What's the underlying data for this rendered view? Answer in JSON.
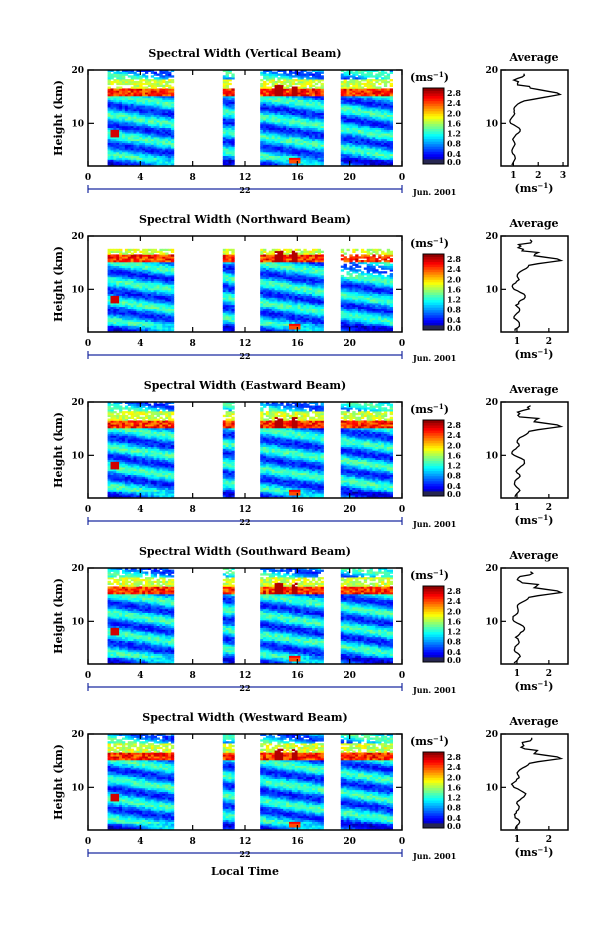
{
  "chart_data": [
    {
      "type": "heatmap",
      "title": "Spectral Width (Vertical Beam)",
      "ylabel": "Height (km)",
      "yticks": [
        "10",
        "20"
      ],
      "ylim": [
        2,
        20
      ],
      "xticks": [
        "0",
        "4",
        "8",
        "12",
        "16",
        "20",
        "0"
      ],
      "date_label": "22",
      "month_label": "Jun. 2001",
      "colorbar": {
        "unit": "(ms⁻¹)",
        "ticks": [
          "2.8",
          "2.4",
          "2.0",
          "1.6",
          "1.2",
          "0.8",
          "0.4",
          "0.0"
        ],
        "range": [
          0,
          3.0
        ]
      },
      "average": {
        "title": "Average",
        "unit": "(ms⁻¹)",
        "xticks": [
          "1",
          "2",
          "3"
        ],
        "xlim": [
          0.5,
          3.2
        ],
        "yticks": [
          "10",
          "20"
        ],
        "peak": {
          "height_km": 15.5,
          "value": 3.0
        }
      }
    },
    {
      "type": "heatmap",
      "title": "Spectral Width (Northward Beam)",
      "ylabel": "Height (km)",
      "yticks": [
        "10",
        "20"
      ],
      "ylim": [
        2,
        20
      ],
      "xticks": [
        "0",
        "4",
        "8",
        "12",
        "16",
        "20",
        "0"
      ],
      "date_label": "22",
      "month_label": "Jun. 2001",
      "colorbar": {
        "unit": "(ms⁻¹)",
        "ticks": [
          "2.8",
          "2.4",
          "2.0",
          "1.6",
          "1.2",
          "0.8",
          "0.4",
          "0.0"
        ],
        "range": [
          0,
          3.0
        ]
      },
      "average": {
        "title": "Average",
        "unit": "(ms⁻¹)",
        "xticks": [
          "1",
          "2"
        ],
        "xlim": [
          0.5,
          2.6
        ],
        "yticks": [
          "10",
          "20"
        ],
        "peak": {
          "height_km": 15.5,
          "value": 2.5
        }
      }
    },
    {
      "type": "heatmap",
      "title": "Spectral Width (Eastward Beam)",
      "ylabel": "Height (km)",
      "yticks": [
        "10",
        "20"
      ],
      "ylim": [
        2,
        20
      ],
      "xticks": [
        "0",
        "4",
        "8",
        "12",
        "16",
        "20",
        "0"
      ],
      "date_label": "22",
      "month_label": "Jun. 2001",
      "colorbar": {
        "unit": "(ms⁻¹)",
        "ticks": [
          "2.8",
          "2.4",
          "2.0",
          "1.6",
          "1.2",
          "0.8",
          "0.4",
          "0.0"
        ],
        "range": [
          0,
          3.0
        ]
      },
      "average": {
        "title": "Average",
        "unit": "(ms⁻¹)",
        "xticks": [
          "1",
          "2"
        ],
        "xlim": [
          0.5,
          2.6
        ],
        "yticks": [
          "10",
          "20"
        ],
        "peak": {
          "height_km": 15.5,
          "value": 2.5
        }
      }
    },
    {
      "type": "heatmap",
      "title": "Spectral Width (Southward Beam)",
      "ylabel": "Height (km)",
      "yticks": [
        "10",
        "20"
      ],
      "ylim": [
        2,
        20
      ],
      "xticks": [
        "0",
        "4",
        "8",
        "12",
        "16",
        "20",
        "0"
      ],
      "date_label": "22",
      "month_label": "Jun. 2001",
      "colorbar": {
        "unit": "(ms⁻¹)",
        "ticks": [
          "2.8",
          "2.4",
          "2.0",
          "1.6",
          "1.2",
          "0.8",
          "0.4",
          "0.0"
        ],
        "range": [
          0,
          3.0
        ]
      },
      "average": {
        "title": "Average",
        "unit": "(ms⁻¹)",
        "xticks": [
          "1",
          "2"
        ],
        "xlim": [
          0.5,
          2.6
        ],
        "yticks": [
          "10",
          "20"
        ],
        "peak": {
          "height_km": 15.5,
          "value": 2.5
        }
      }
    },
    {
      "type": "heatmap",
      "title": "Spectral Width (Westward Beam)",
      "ylabel": "Height (km)",
      "yticks": [
        "10",
        "20"
      ],
      "ylim": [
        2,
        20
      ],
      "xticks": [
        "0",
        "4",
        "8",
        "12",
        "16",
        "20",
        "0"
      ],
      "date_label": "22",
      "month_label": "Jun. 2001",
      "xlabel": "Local Time",
      "colorbar": {
        "unit": "(ms⁻¹)",
        "ticks": [
          "2.8",
          "2.4",
          "2.0",
          "1.6",
          "1.2",
          "0.8",
          "0.4",
          "0.0"
        ],
        "range": [
          0,
          3.0
        ]
      },
      "average": {
        "title": "Average",
        "unit": "(ms⁻¹)",
        "xticks": [
          "1",
          "2"
        ],
        "xlim": [
          0.5,
          2.6
        ],
        "yticks": [
          "10",
          "20"
        ],
        "peak": {
          "height_km": 15.5,
          "value": 2.5
        }
      }
    }
  ]
}
